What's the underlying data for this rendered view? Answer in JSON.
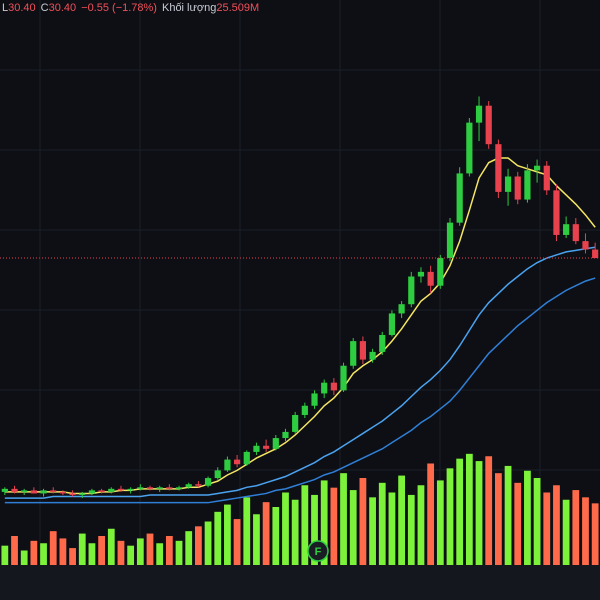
{
  "header": {
    "low_label": "L",
    "low": "30.40",
    "close_label": "C",
    "close": "30.40",
    "change": "−0.55 (−1.78%)",
    "volume_label": "Khối lượng",
    "volume": "25.509M"
  },
  "chart_data": {
    "type": "candlestick",
    "ohlc": [
      [
        15.2,
        15.5,
        15.0,
        15.4
      ],
      [
        15.4,
        15.6,
        15.1,
        15.2
      ],
      [
        15.2,
        15.4,
        15.0,
        15.3
      ],
      [
        15.3,
        15.5,
        15.1,
        15.1
      ],
      [
        15.1,
        15.4,
        14.9,
        15.3
      ],
      [
        15.3,
        15.5,
        15.1,
        15.2
      ],
      [
        15.2,
        15.3,
        15.0,
        15.1
      ],
      [
        15.1,
        15.3,
        14.9,
        15.0
      ],
      [
        15.0,
        15.2,
        14.8,
        15.1
      ],
      [
        15.1,
        15.4,
        15.0,
        15.3
      ],
      [
        15.3,
        15.4,
        15.1,
        15.2
      ],
      [
        15.2,
        15.5,
        15.1,
        15.4
      ],
      [
        15.4,
        15.6,
        15.2,
        15.3
      ],
      [
        15.3,
        15.5,
        15.1,
        15.4
      ],
      [
        15.4,
        15.7,
        15.3,
        15.5
      ],
      [
        15.5,
        15.6,
        15.3,
        15.4
      ],
      [
        15.4,
        15.6,
        15.2,
        15.5
      ],
      [
        15.5,
        15.7,
        15.3,
        15.4
      ],
      [
        15.4,
        15.6,
        15.3,
        15.5
      ],
      [
        15.5,
        15.8,
        15.4,
        15.7
      ],
      [
        15.7,
        15.9,
        15.5,
        15.6
      ],
      [
        15.6,
        16.2,
        15.5,
        16.1
      ],
      [
        16.1,
        16.8,
        16.0,
        16.6
      ],
      [
        16.6,
        17.5,
        16.5,
        17.3
      ],
      [
        17.3,
        17.6,
        16.8,
        17.0
      ],
      [
        17.0,
        17.9,
        16.9,
        17.8
      ],
      [
        17.8,
        18.4,
        17.6,
        18.2
      ],
      [
        18.2,
        18.6,
        17.8,
        18.0
      ],
      [
        18.0,
        18.9,
        17.9,
        18.7
      ],
      [
        18.7,
        19.3,
        18.5,
        19.1
      ],
      [
        19.1,
        20.4,
        19.0,
        20.2
      ],
      [
        20.2,
        21.0,
        20.0,
        20.8
      ],
      [
        20.8,
        21.8,
        20.6,
        21.6
      ],
      [
        21.6,
        22.5,
        21.3,
        22.3
      ],
      [
        22.3,
        22.6,
        21.5,
        21.8
      ],
      [
        21.8,
        23.6,
        21.7,
        23.4
      ],
      [
        23.4,
        25.2,
        23.2,
        25.0
      ],
      [
        25.0,
        25.3,
        23.5,
        23.8
      ],
      [
        23.8,
        24.5,
        23.6,
        24.3
      ],
      [
        24.3,
        25.6,
        24.1,
        25.4
      ],
      [
        25.4,
        27.0,
        25.3,
        26.8
      ],
      [
        26.8,
        27.6,
        26.5,
        27.4
      ],
      [
        27.4,
        29.5,
        27.2,
        29.2
      ],
      [
        29.2,
        29.8,
        28.8,
        29.5
      ],
      [
        29.5,
        29.9,
        28.1,
        28.6
      ],
      [
        28.6,
        30.6,
        28.4,
        30.4
      ],
      [
        30.4,
        33.0,
        30.2,
        32.7
      ],
      [
        32.7,
        36.3,
        32.5,
        35.9
      ],
      [
        35.9,
        39.5,
        35.7,
        39.2
      ],
      [
        39.2,
        40.9,
        38.0,
        40.3
      ],
      [
        40.3,
        40.6,
        37.5,
        37.8
      ],
      [
        37.8,
        38.1,
        34.3,
        34.7
      ],
      [
        34.7,
        36.2,
        33.8,
        35.7
      ],
      [
        35.7,
        36.0,
        33.9,
        34.2
      ],
      [
        34.2,
        36.5,
        34.0,
        36.1
      ],
      [
        36.1,
        36.8,
        35.3,
        36.4
      ],
      [
        36.4,
        36.7,
        34.5,
        34.8
      ],
      [
        34.8,
        35.2,
        31.5,
        31.9
      ],
      [
        31.9,
        33.1,
        31.7,
        32.6
      ],
      [
        32.6,
        33.0,
        31.3,
        31.5
      ],
      [
        31.5,
        32.0,
        30.7,
        30.95
      ],
      [
        30.95,
        31.4,
        30.4,
        30.4
      ]
    ],
    "volume": [
      8,
      12,
      6,
      10,
      9,
      14,
      11,
      7,
      13,
      9,
      12,
      15,
      10,
      8,
      11,
      13,
      9,
      12,
      10,
      14,
      16,
      18,
      22,
      25,
      19,
      28,
      21,
      26,
      24,
      30,
      27,
      33,
      29,
      35,
      32,
      38,
      31,
      36,
      28,
      34,
      30,
      37,
      29,
      33,
      42,
      35,
      40,
      44,
      46,
      43,
      45,
      38,
      41,
      34,
      39,
      36,
      30,
      33,
      27,
      31,
      28,
      25.509
    ],
    "series": [
      {
        "color": "#f5e663",
        "values": [
          15.2,
          15.2,
          15.2,
          15.2,
          15.2,
          15.2,
          15.2,
          15.1,
          15.1,
          15.1,
          15.2,
          15.2,
          15.3,
          15.3,
          15.4,
          15.4,
          15.4,
          15.4,
          15.4,
          15.5,
          15.5,
          15.7,
          15.9,
          16.3,
          16.6,
          17.0,
          17.4,
          17.7,
          18.0,
          18.4,
          18.9,
          19.5,
          20.1,
          20.8,
          21.3,
          22.0,
          22.9,
          23.4,
          23.8,
          24.3,
          25.0,
          25.8,
          26.7,
          27.6,
          28.1,
          28.8,
          29.9,
          31.5,
          33.5,
          35.6,
          36.6,
          36.9,
          36.9,
          36.4,
          36.2,
          36.0,
          35.8,
          35.1,
          34.5,
          33.9,
          33.2,
          32.4
        ]
      },
      {
        "color": "#4aa3f0",
        "values": [
          14.8,
          14.8,
          14.8,
          14.8,
          14.8,
          14.9,
          14.9,
          14.9,
          14.9,
          14.9,
          14.9,
          14.9,
          14.9,
          14.9,
          14.9,
          15.0,
          15.0,
          15.0,
          15.0,
          15.0,
          15.0,
          15.0,
          15.1,
          15.2,
          15.3,
          15.5,
          15.6,
          15.8,
          16.0,
          16.2,
          16.5,
          16.8,
          17.1,
          17.5,
          17.8,
          18.2,
          18.6,
          19.0,
          19.4,
          19.8,
          20.3,
          20.8,
          21.4,
          22.0,
          22.5,
          23.1,
          23.8,
          24.7,
          25.7,
          26.7,
          27.5,
          28.1,
          28.7,
          29.2,
          29.7,
          30.1,
          30.4,
          30.6,
          30.8,
          30.9,
          31.0,
          31.1
        ]
      },
      {
        "color": "#2f7fd6",
        "values": [
          14.5,
          14.5,
          14.5,
          14.5,
          14.5,
          14.5,
          14.5,
          14.5,
          14.5,
          14.5,
          14.5,
          14.5,
          14.5,
          14.5,
          14.5,
          14.5,
          14.5,
          14.5,
          14.5,
          14.5,
          14.5,
          14.5,
          14.6,
          14.7,
          14.8,
          14.9,
          15.0,
          15.1,
          15.3,
          15.4,
          15.6,
          15.8,
          16.0,
          16.3,
          16.5,
          16.8,
          17.1,
          17.4,
          17.7,
          18.0,
          18.4,
          18.8,
          19.2,
          19.7,
          20.1,
          20.6,
          21.1,
          21.8,
          22.6,
          23.4,
          24.2,
          24.8,
          25.4,
          26.0,
          26.5,
          27.0,
          27.5,
          27.9,
          28.3,
          28.6,
          28.9,
          29.1
        ]
      }
    ],
    "up_color": "#2ecc40",
    "down_color": "#e8424f",
    "volume_up_color": "#7cf23a",
    "volume_down_color": "#ff6b4a",
    "ylim": [
      10.45,
      47.17
    ],
    "volume_ylim": [
      0,
      60
    ]
  }
}
